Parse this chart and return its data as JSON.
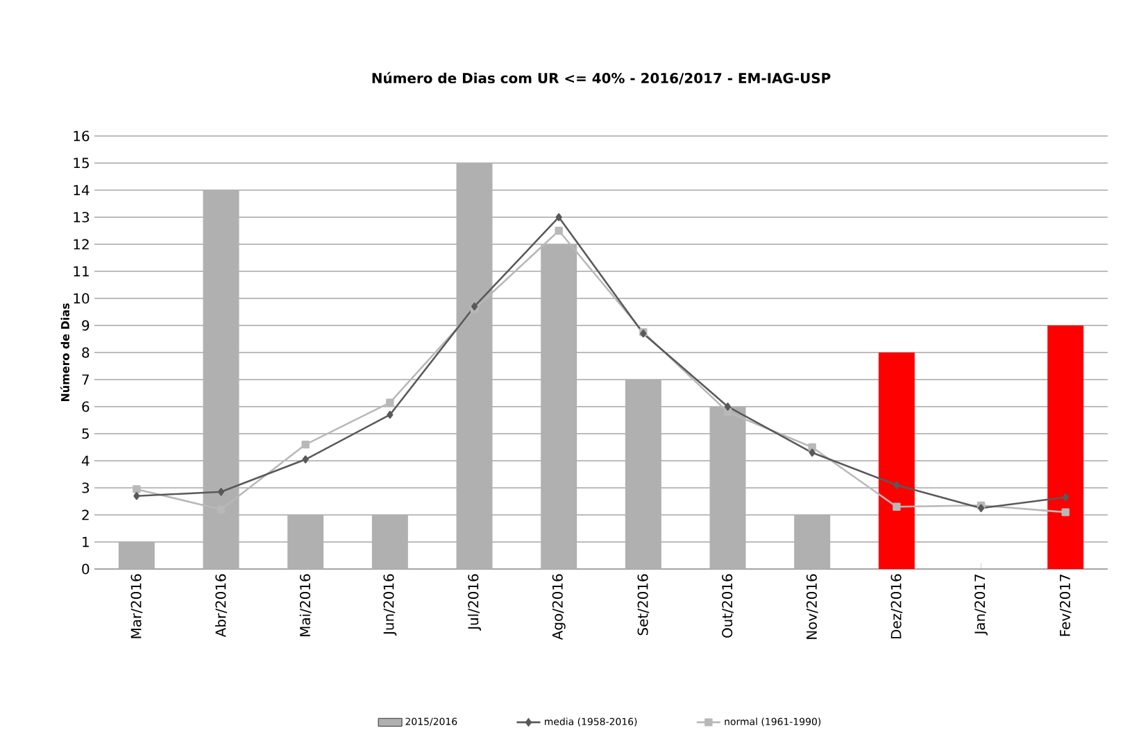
{
  "chart_data": {
    "type": "bar",
    "title": "Número de Dias com UR <= 40% - 2016/2017 - EM-IAG-USP",
    "ylabel": "Número de Dias",
    "categories": [
      "Mar/2016",
      "Abr/2016",
      "Mai/2016",
      "Jun/2016",
      "Jul/2016",
      "Ago/2016",
      "Set/2016",
      "Out/2016",
      "Nov/2016",
      "Dez/2016",
      "Jan/2017",
      "Fev/2017"
    ],
    "series": [
      {
        "name": "2015/2016",
        "color": "#b0b0b0",
        "colors": [
          "#b0b0b0",
          "#b0b0b0",
          "#b0b0b0",
          "#b0b0b0",
          "#b0b0b0",
          "#b0b0b0",
          "#b0b0b0",
          "#b0b0b0",
          "#b0b0b0",
          "#ff0000",
          "#b0b0b0",
          "#ff0000"
        ],
        "values": [
          1,
          14,
          2,
          2,
          15,
          12,
          7,
          6,
          2,
          8,
          0,
          9
        ]
      },
      {
        "name": "media (1958-2016)",
        "type": "line",
        "color": "#595959",
        "marker": "diamond",
        "values": [
          2.7,
          2.85,
          4.05,
          5.7,
          9.7,
          13.0,
          8.7,
          6.0,
          4.3,
          3.1,
          2.25,
          2.65
        ]
      },
      {
        "name": "normal (1961-1990)",
        "type": "line",
        "color": "#b8b8b8",
        "marker": "square",
        "values": [
          2.95,
          2.2,
          4.6,
          6.15,
          9.6,
          12.5,
          8.75,
          5.8,
          4.5,
          2.3,
          2.35,
          2.1
        ]
      }
    ],
    "ylim": [
      0,
      16
    ],
    "yticks": [
      0,
      1,
      2,
      3,
      4,
      5,
      6,
      7,
      8,
      9,
      10,
      11,
      12,
      13,
      14,
      15,
      16
    ],
    "grid": "y",
    "legend": "bottom"
  }
}
